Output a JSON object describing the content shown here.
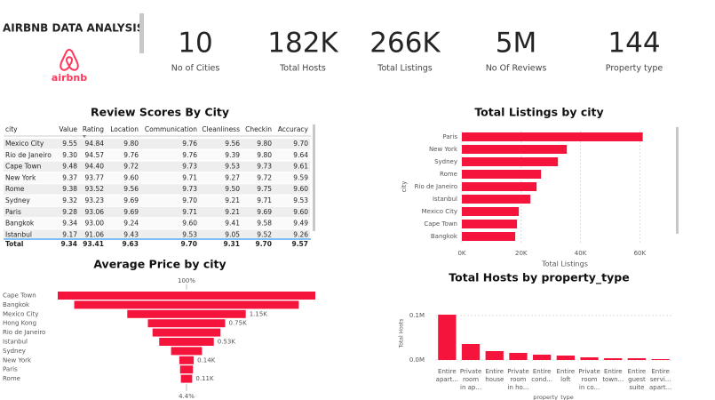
{
  "header": {
    "title": "AIRBNB DATA ANALYSIS",
    "logo_text": "airbnb"
  },
  "kpis": [
    {
      "value": "10",
      "label": "No of Cities"
    },
    {
      "value": "182K",
      "label": "Total Hosts"
    },
    {
      "value": "266K",
      "label": "Total Listings"
    },
    {
      "value": "5M",
      "label": "No Of Reviews"
    },
    {
      "value": "144",
      "label": "Property type"
    }
  ],
  "table": {
    "title": "Review Scores By City",
    "columns": [
      "city",
      "Value",
      "Rating",
      "Location",
      "Communication",
      "Cleanliness",
      "Checkin",
      "Accuracy"
    ],
    "rows": [
      [
        "Mexico City",
        "9.55",
        "94.84",
        "9.80",
        "9.76",
        "9.56",
        "9.80",
        "9.70"
      ],
      [
        "Rio de Janeiro",
        "9.30",
        "94.57",
        "9.76",
        "9.76",
        "9.39",
        "9.80",
        "9.64"
      ],
      [
        "Cape Town",
        "9.48",
        "94.40",
        "9.72",
        "9.73",
        "9.53",
        "9.73",
        "9.61"
      ],
      [
        "New York",
        "9.37",
        "93.77",
        "9.60",
        "9.71",
        "9.27",
        "9.72",
        "9.59"
      ],
      [
        "Rome",
        "9.38",
        "93.52",
        "9.56",
        "9.73",
        "9.50",
        "9.75",
        "9.60"
      ],
      [
        "Sydney",
        "9.32",
        "93.23",
        "9.69",
        "9.70",
        "9.21",
        "9.71",
        "9.53"
      ],
      [
        "Paris",
        "9.28",
        "93.06",
        "9.69",
        "9.71",
        "9.21",
        "9.69",
        "9.60"
      ],
      [
        "Bangkok",
        "9.34",
        "93.00",
        "9.24",
        "9.60",
        "9.41",
        "9.58",
        "9.49"
      ],
      [
        "Istanbul",
        "9.17",
        "91.06",
        "9.43",
        "9.53",
        "9.05",
        "9.52",
        "9.26"
      ]
    ],
    "total": [
      "Total",
      "9.34",
      "93.41",
      "9.63",
      "9.70",
      "9.31",
      "9.70",
      "9.57"
    ]
  },
  "chart_data": [
    {
      "type": "hbar",
      "title": "Total Listings by city",
      "categories": [
        "Paris",
        "New York",
        "Sydney",
        "Rome",
        "Rio de Janeiro",
        "Istanbul",
        "Mexico City",
        "Cape Town",
        "Bangkok"
      ],
      "values": [
        61000,
        35400,
        32400,
        26700,
        25200,
        23100,
        19200,
        18600,
        18000
      ],
      "color": "#f5153c",
      "xlim": [
        0,
        62000
      ],
      "xticks": [
        {
          "value": 0,
          "label": "0K"
        },
        {
          "value": 20000,
          "label": "20K"
        },
        {
          "value": 40000,
          "label": "40K"
        },
        {
          "value": 60000,
          "label": "60K"
        }
      ],
      "xlabel": "Total Listings",
      "ylabel": "city",
      "grid": true
    },
    {
      "type": "funnel",
      "title": "Average Price by city",
      "categories": [
        "Cape Town",
        "Bangkok",
        "Mexico City",
        "Hong Kong",
        "Rio de Janeiro",
        "Istanbul",
        "Sydney",
        "New York",
        "Paris",
        "Rome"
      ],
      "values": [
        2500,
        2180,
        1150,
        750,
        660,
        530,
        300,
        140,
        125,
        110
      ],
      "value_labels": [
        null,
        null,
        "1.15K",
        "0.75K",
        null,
        "0.53K",
        null,
        "0.14K",
        null,
        "0.11K"
      ],
      "top_label": "100%",
      "bottom_label": "4.4%",
      "color": "#f5153c"
    },
    {
      "type": "bar",
      "title": "Total Hosts by property_type",
      "categories": [
        "Entire\napart...",
        "Private\nroom\nin ap...",
        "Entire\nhouse",
        "Private\nroom\nin ho...",
        "Entire\ncond...",
        "Entire\nloft",
        "Private\nroom\nin co...",
        "Entire\ntown...",
        "Entire\nguest\nsuite",
        "Entire\nservi...\napart..."
      ],
      "values": [
        102000,
        36000,
        20000,
        16000,
        12000,
        10000,
        6000,
        4000,
        4000,
        2000
      ],
      "color": "#f5153c",
      "ylim": [
        0,
        110000
      ],
      "yticks": [
        {
          "value": 0,
          "label": "0.0M"
        },
        {
          "value": 100000,
          "label": "0.1M"
        }
      ],
      "xlabel": "property_type",
      "ylabel": "Total Hosts"
    }
  ]
}
